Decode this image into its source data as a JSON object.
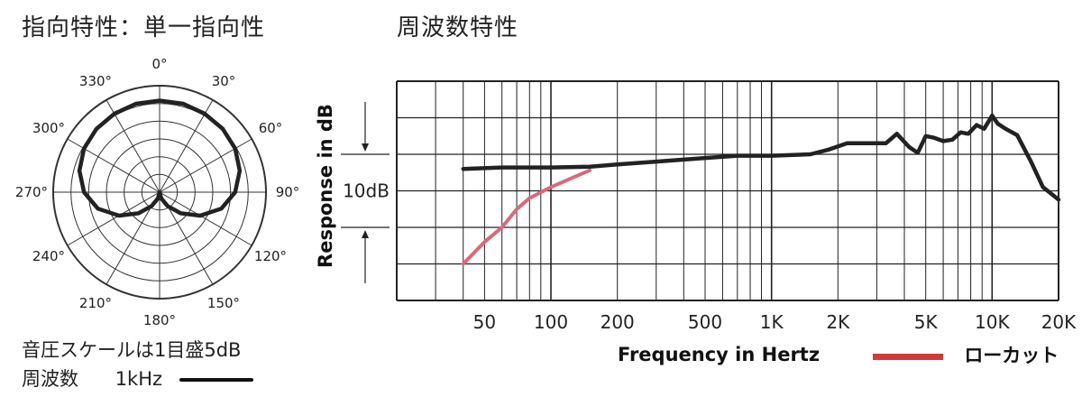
{
  "titles": {
    "polar": "指向特性：単一指向性",
    "frequency": "周波数特性"
  },
  "notes": {
    "scale": "音圧スケールは1目盛5dB",
    "frequency_label": "周波数",
    "frequency_value": "1kHz"
  },
  "legend": {
    "lowcut_label": "ローカット",
    "lowcut_color": "#d23a3a"
  },
  "chart_data": [
    {
      "type": "polar",
      "angle_labels": [
        "0°",
        "30°",
        "60°",
        "90°",
        "120°",
        "150°",
        "180°",
        "210°",
        "240°",
        "270°",
        "300°",
        "330°"
      ],
      "scale_note": "音圧スケールは1目盛5dB",
      "rings": 6,
      "series": [
        {
          "name": "1kHz",
          "color": "#222222",
          "points": [
            {
              "angle": 0,
              "r": 0.86
            },
            {
              "angle": 15,
              "r": 0.86
            },
            {
              "angle": 30,
              "r": 0.85
            },
            {
              "angle": 45,
              "r": 0.84
            },
            {
              "angle": 60,
              "r": 0.82
            },
            {
              "angle": 75,
              "r": 0.78
            },
            {
              "angle": 90,
              "r": 0.71
            },
            {
              "angle": 105,
              "r": 0.6
            },
            {
              "angle": 120,
              "r": 0.44
            },
            {
              "angle": 135,
              "r": 0.28
            },
            {
              "angle": 150,
              "r": 0.15
            },
            {
              "angle": 165,
              "r": 0.06
            },
            {
              "angle": 180,
              "r": 0.0
            },
            {
              "angle": 195,
              "r": 0.06
            },
            {
              "angle": 210,
              "r": 0.15
            },
            {
              "angle": 225,
              "r": 0.28
            },
            {
              "angle": 240,
              "r": 0.44
            },
            {
              "angle": 255,
              "r": 0.6
            },
            {
              "angle": 270,
              "r": 0.71
            },
            {
              "angle": 285,
              "r": 0.78
            },
            {
              "angle": 300,
              "r": 0.82
            },
            {
              "angle": 315,
              "r": 0.84
            },
            {
              "angle": 330,
              "r": 0.85
            },
            {
              "angle": 345,
              "r": 0.86
            }
          ]
        }
      ]
    },
    {
      "type": "line",
      "title": "周波数特性",
      "xlabel": "Frequency in Hertz",
      "ylabel": "Response in dB",
      "x_scale": "log",
      "xlim": [
        20,
        20000
      ],
      "ylim": [
        -20,
        10
      ],
      "x_ticks": [
        {
          "value": 50,
          "label": "50"
        },
        {
          "value": 100,
          "label": "100"
        },
        {
          "value": 200,
          "label": "200"
        },
        {
          "value": 500,
          "label": "500"
        },
        {
          "value": 1000,
          "label": "1K"
        },
        {
          "value": 2000,
          "label": "2K"
        },
        {
          "value": 5000,
          "label": "5K"
        },
        {
          "value": 10000,
          "label": "10K"
        },
        {
          "value": 20000,
          "label": "20K"
        }
      ],
      "scale_marker_label": "10dB",
      "grid": true,
      "series": [
        {
          "name": "",
          "color": "#222222",
          "x": [
            40,
            60,
            100,
            150,
            200,
            300,
            500,
            700,
            1000,
            1500,
            1800,
            2200,
            2800,
            3300,
            3700,
            4200,
            4600,
            5000,
            5400,
            6000,
            6600,
            7200,
            7800,
            8500,
            9200,
            10000,
            10600,
            11500,
            13000,
            15000,
            17000,
            20000
          ],
          "y": [
            -2,
            -1.8,
            -1.8,
            -1.7,
            -1.4,
            -1.0,
            -0.5,
            -0.2,
            -0.2,
            0.0,
            0.6,
            1.5,
            1.5,
            1.5,
            2.8,
            1.0,
            0.2,
            2.5,
            2.3,
            1.8,
            2.0,
            3.0,
            2.8,
            4.0,
            3.5,
            5.3,
            4.2,
            3.5,
            2.6,
            -1.0,
            -4.5,
            -6.2
          ]
        },
        {
          "name": "ローカット",
          "color": "#d23a3a",
          "x": [
            40,
            50,
            60,
            70,
            80,
            100,
            130,
            150
          ],
          "y": [
            -15,
            -12,
            -10,
            -7.5,
            -6,
            -4.5,
            -3,
            -2.2
          ]
        }
      ]
    }
  ]
}
